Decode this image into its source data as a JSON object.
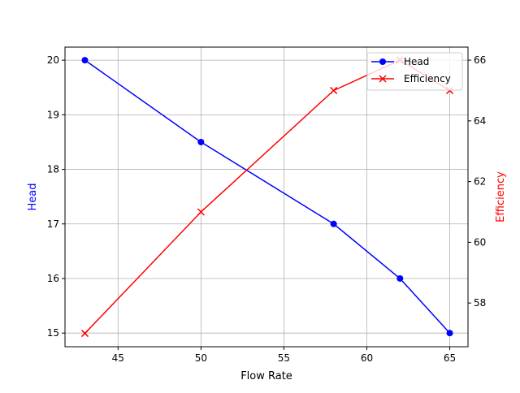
{
  "chart_data": {
    "type": "line",
    "xlabel": "Flow Rate",
    "xlim": [
      41.8,
      66.1
    ],
    "xticks": [
      45,
      50,
      55,
      60,
      65
    ],
    "grid": true,
    "legend_placement": "top-right",
    "axes": {
      "left": {
        "label": "Head",
        "color": "#0000ff",
        "ylim": [
          14.75,
          20.24
        ],
        "ticks": [
          15,
          16,
          17,
          18,
          19,
          20
        ]
      },
      "right": {
        "label": "Efficiency",
        "color": "#ff0000",
        "ylim": [
          56.56,
          66.43
        ],
        "ticks": [
          58,
          60,
          62,
          64,
          66
        ]
      }
    },
    "series": [
      {
        "name": "Head",
        "axis": "left",
        "color": "#0000ff",
        "marker": "circle",
        "x": [
          43,
          50,
          58,
          62,
          65
        ],
        "y": [
          20,
          18.5,
          17,
          16,
          15
        ]
      },
      {
        "name": "Efficiency",
        "axis": "right",
        "color": "#ff0000",
        "marker": "x",
        "x": [
          43,
          50,
          58,
          62,
          65
        ],
        "y": [
          57,
          61,
          65,
          66,
          65
        ]
      }
    ]
  }
}
